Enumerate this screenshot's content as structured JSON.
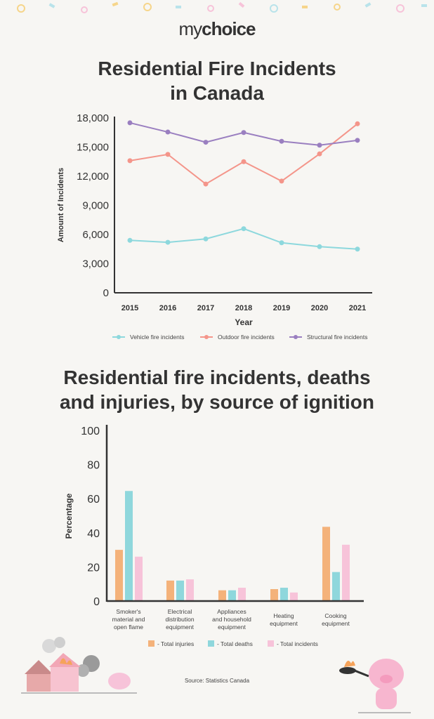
{
  "brand": {
    "logo_prefix": "my",
    "logo_suffix": "choice"
  },
  "colors": {
    "vehicle": "#8dd8dd",
    "outdoor": "#f4958a",
    "structural": "#9a7fc0",
    "injuries": "#f4b27a",
    "deaths": "#8fd7dc",
    "incidents": "#f7c3d9",
    "axis": "#333333"
  },
  "chart_data": [
    {
      "type": "line",
      "title": "Residential Fire Incidents in Canada",
      "title_lines": [
        "Residential Fire Incidents",
        "in Canada"
      ],
      "xlabel": "Year",
      "ylabel": "Amount of Incidents",
      "ylim": [
        0,
        18000
      ],
      "yticks": [
        "0",
        "3,000",
        "6,000",
        "9,000",
        "12,000",
        "15,000",
        "18,000"
      ],
      "ytick_values": [
        0,
        3000,
        6000,
        9000,
        12000,
        15000,
        18000
      ],
      "categories": [
        "2015",
        "2016",
        "2017",
        "2018",
        "2019",
        "2020",
        "2021"
      ],
      "legend_position": "bottom",
      "grid": false,
      "series": [
        {
          "name": "Vehicle fire incidents",
          "color": "#8dd8dd",
          "values": [
            5400,
            5200,
            5550,
            6600,
            5150,
            4750,
            4500
          ]
        },
        {
          "name": "Outdoor fire incidents",
          "color": "#f4958a",
          "values": [
            13600,
            14250,
            11200,
            13500,
            11500,
            14300,
            17400
          ]
        },
        {
          "name": "Structural fire incidents",
          "color": "#9a7fc0",
          "values": [
            17500,
            16550,
            15500,
            16500,
            15600,
            15200,
            15700
          ]
        }
      ]
    },
    {
      "type": "bar",
      "title": "Residential fire incidents, deaths and injuries, by source of ignition",
      "title_lines": [
        "Residential fire incidents, deaths",
        "and injuries, by source of ignition"
      ],
      "xlabel": "",
      "ylabel": "Percentage",
      "ylim": [
        0,
        100
      ],
      "yticks": [
        "0",
        "20",
        "40",
        "60",
        "80",
        "100"
      ],
      "ytick_values": [
        0,
        20,
        40,
        60,
        80,
        100
      ],
      "categories": [
        [
          "Smoker's",
          "material and",
          "open flame"
        ],
        [
          "Electrical",
          "distribution",
          "equipment"
        ],
        [
          "Appliances",
          "and household",
          "equipment"
        ],
        [
          "Heating",
          "equipment"
        ],
        [
          "Cooking",
          "equipment"
        ]
      ],
      "legend_position": "bottom",
      "grid": false,
      "series": [
        {
          "name": "- Total injuries",
          "color": "#f4b27a",
          "values": [
            30,
            12,
            6.3,
            7,
            43.5
          ]
        },
        {
          "name": "- Total deaths",
          "color": "#8fd7dc",
          "values": [
            64.5,
            12,
            6.3,
            7.8,
            17
          ]
        },
        {
          "name": "- Total incidents",
          "color": "#f7c3d9",
          "values": [
            26,
            12.7,
            7.8,
            5,
            33
          ]
        }
      ]
    }
  ],
  "source": "Source: Statistics Canada"
}
